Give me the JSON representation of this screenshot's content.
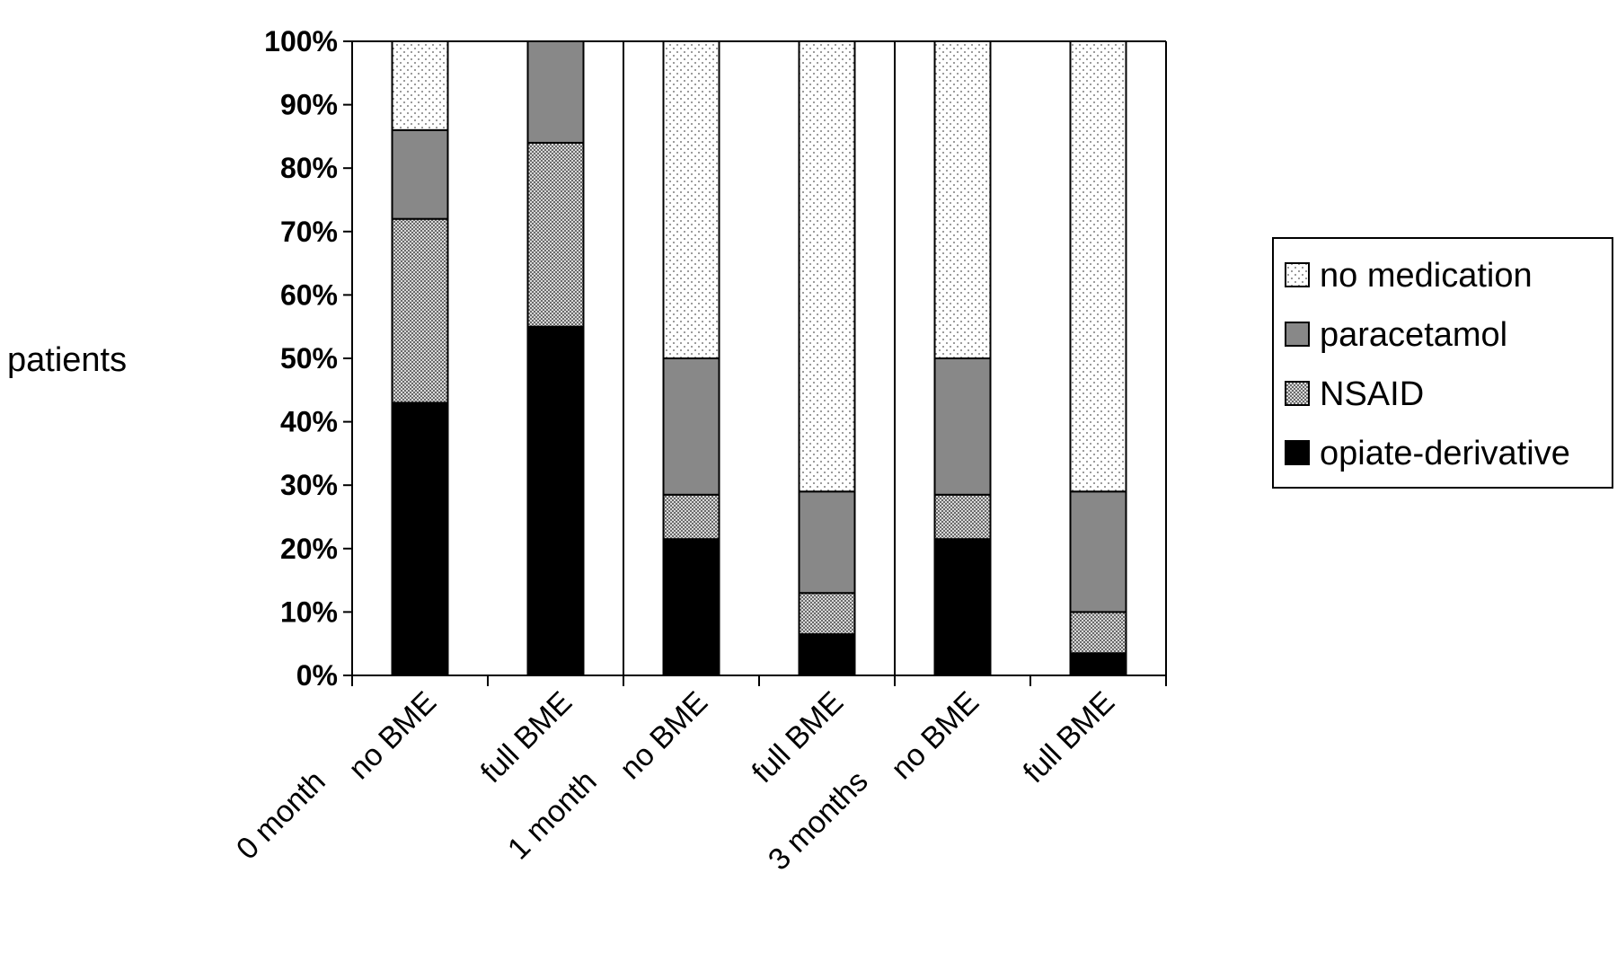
{
  "chart_data": {
    "type": "bar",
    "stacked": true,
    "title": "",
    "ylabel": "patients",
    "xlabel": "",
    "ylim": [
      0,
      100
    ],
    "yticks": [
      0,
      10,
      20,
      30,
      40,
      50,
      60,
      70,
      80,
      90,
      100
    ],
    "ytick_suffix": "%",
    "legend_position": "right",
    "groups": [
      {
        "label": "0 month"
      },
      {
        "label": "1 month"
      },
      {
        "label": "3 months"
      }
    ],
    "categories": [
      "no BME",
      "full BME",
      "no BME",
      "full BME",
      "no BME",
      "full BME"
    ],
    "series": [
      {
        "name": "opiate-derivative",
        "pattern": "solid-black",
        "values": [
          43,
          55,
          21.5,
          6.5,
          21.5,
          3.5
        ]
      },
      {
        "name": "NSAID",
        "pattern": "dense-dots",
        "values": [
          29,
          29,
          7,
          6.5,
          7,
          6.5
        ]
      },
      {
        "name": "paracetamol",
        "pattern": "solid-gray",
        "values": [
          14,
          16,
          21.5,
          16,
          21.5,
          19
        ]
      },
      {
        "name": "no medication",
        "pattern": "sparse-dots",
        "values": [
          14,
          0,
          50,
          71,
          50,
          71
        ]
      }
    ],
    "legend_order": [
      "no medication",
      "paracetamol",
      "NSAID",
      "opiate-derivative"
    ],
    "grid": false
  }
}
